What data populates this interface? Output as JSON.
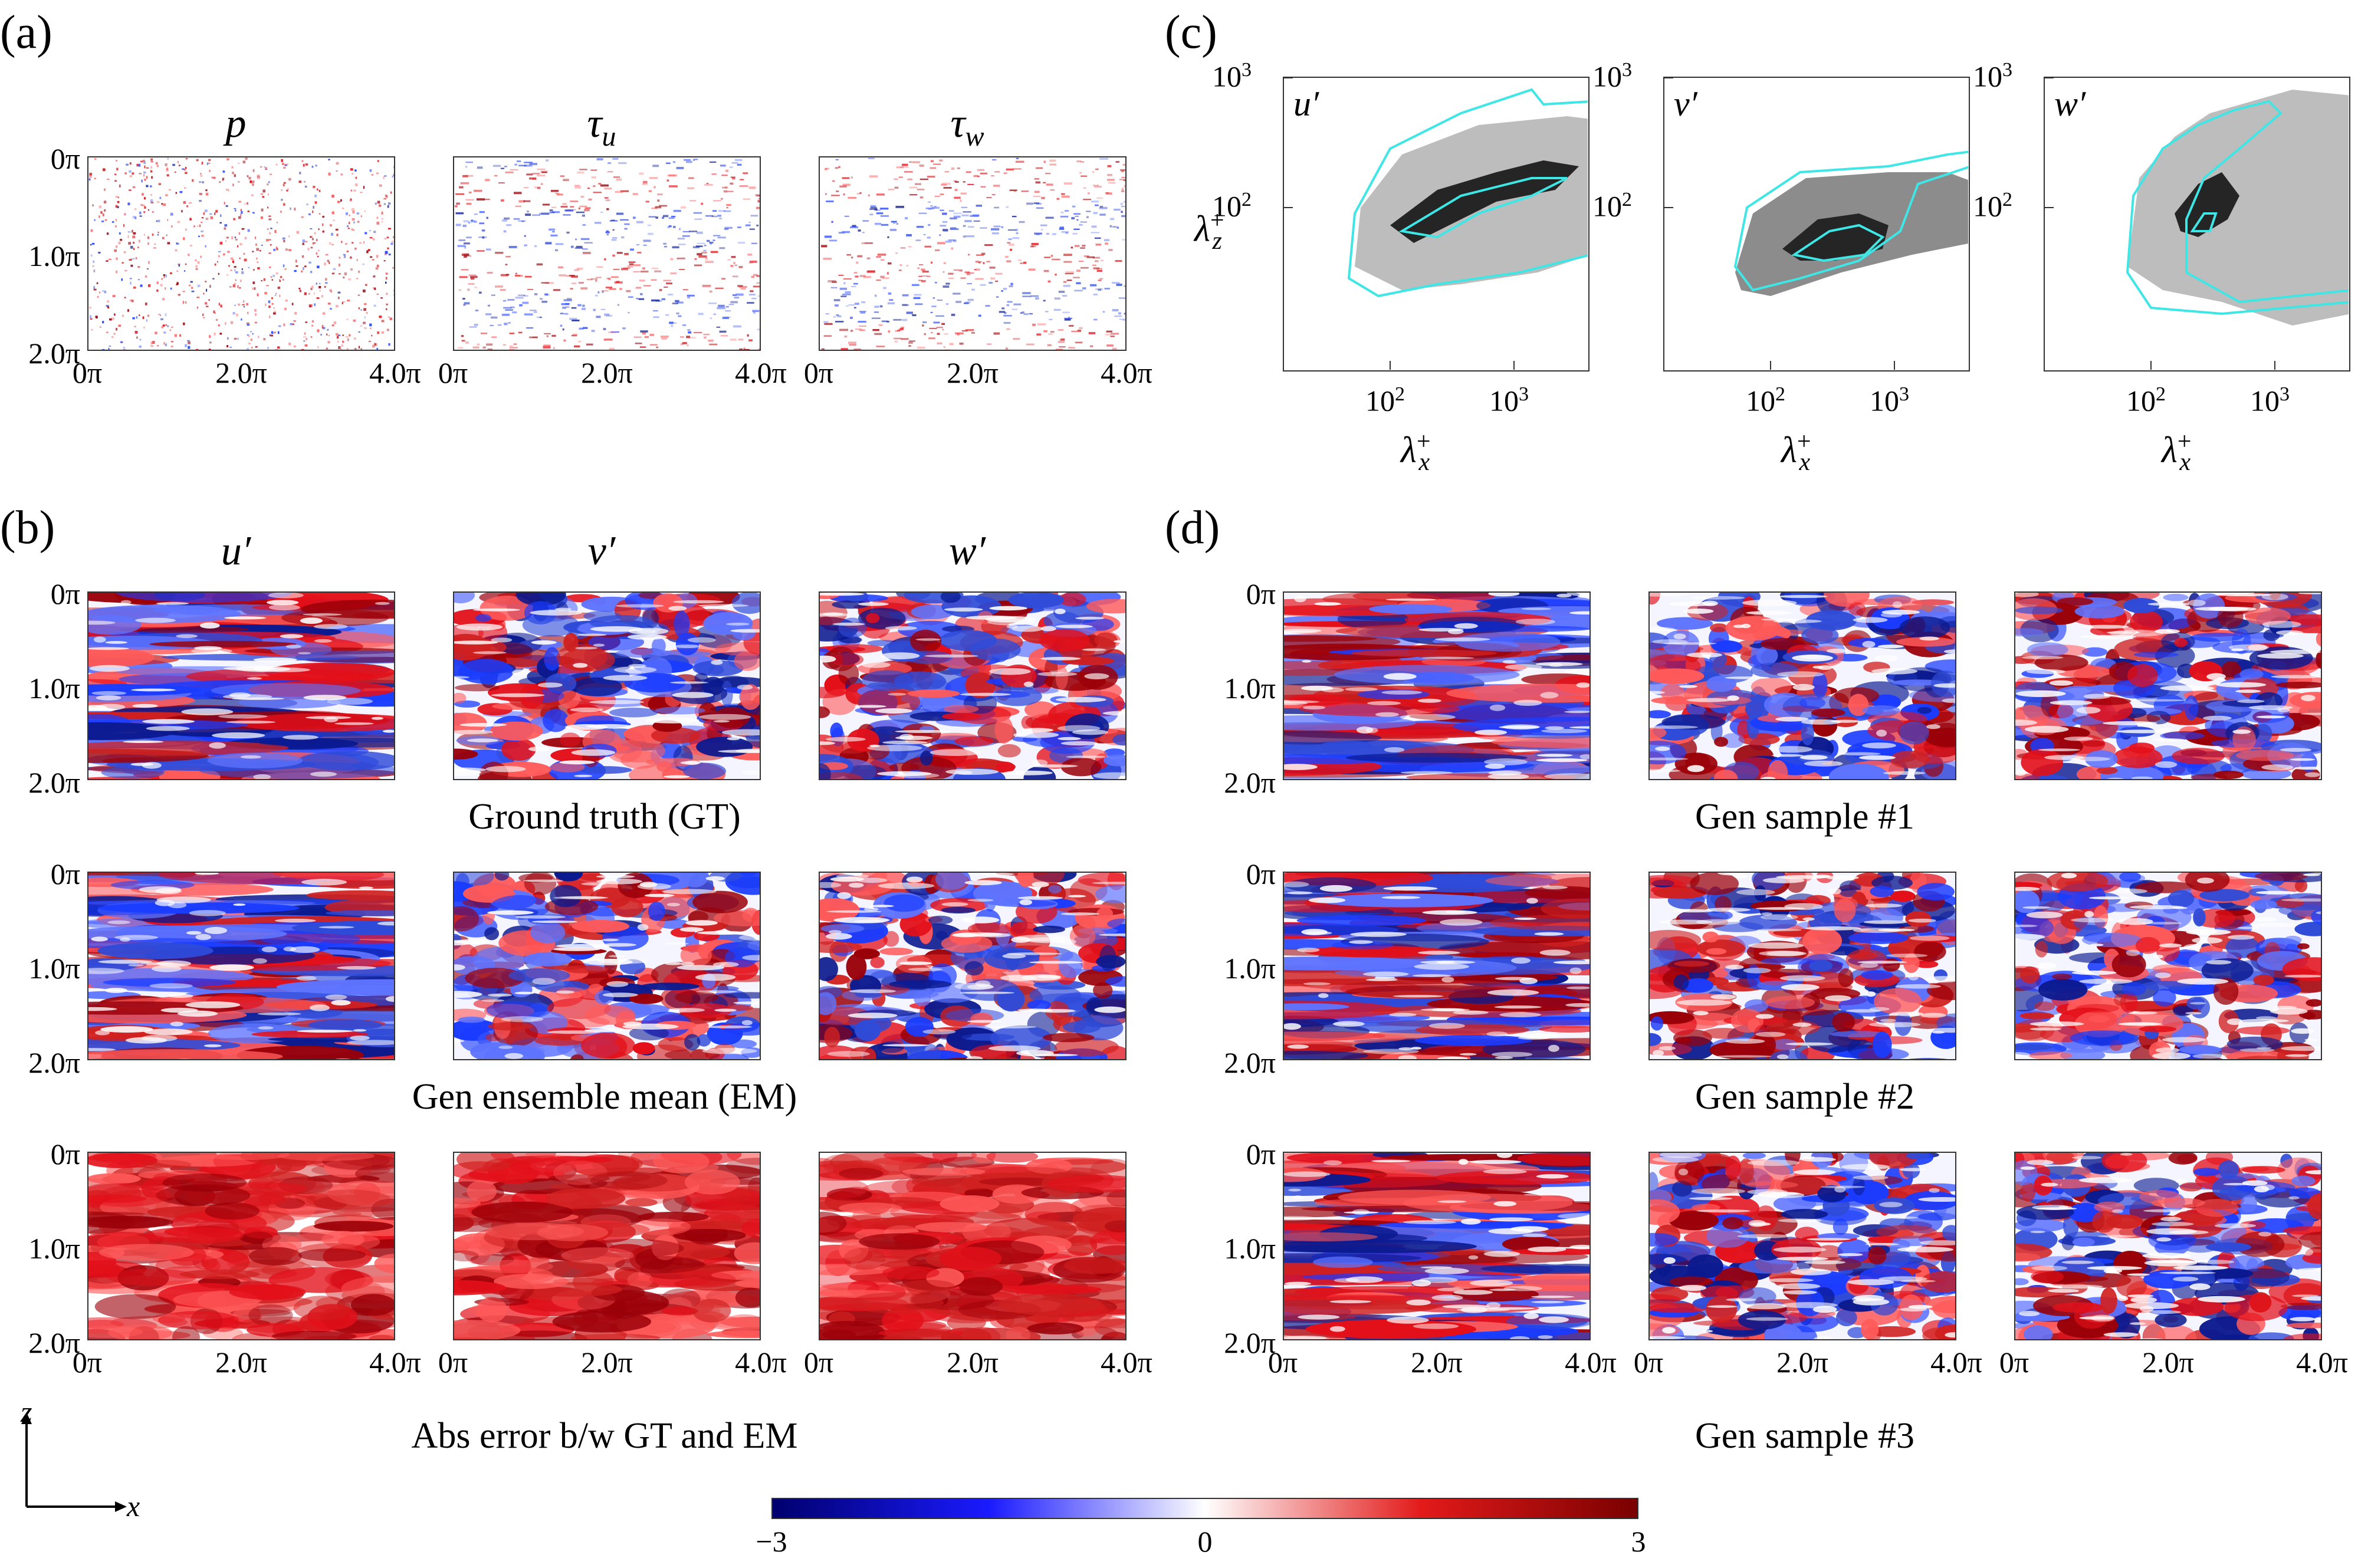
{
  "panel_labels": {
    "a": "(a)",
    "b": "(b)",
    "c": "(c)",
    "d": "(d)"
  },
  "a": {
    "titles": [
      "p",
      "τ",
      "τ"
    ],
    "subscripts": [
      "",
      "u",
      "w"
    ],
    "y_ticks": [
      "0π",
      "1.0π",
      "2.0π"
    ],
    "x_ticks": [
      "0π",
      "2.0π",
      "4.0π"
    ]
  },
  "b": {
    "col_titles": [
      "u′",
      "v′",
      "w′"
    ],
    "row_captions": [
      "Ground truth (GT)",
      "Gen ensemble mean (EM)",
      "Abs error b/w GT and EM"
    ],
    "y_ticks": [
      "0π",
      "1.0π",
      "2.0π"
    ],
    "x_ticks": [
      "0π",
      "2.0π",
      "4.0π"
    ]
  },
  "c": {
    "panel_titles": [
      "u′",
      "v′",
      "w′"
    ],
    "y_ticks": [
      "10",
      "10"
    ],
    "y_tick_exps": [
      "3",
      "2"
    ],
    "x_ticks": [
      "10",
      "10"
    ],
    "x_tick_exps": [
      "2",
      "3"
    ],
    "ylabel": "λ",
    "ylabel_sup": "+",
    "ylabel_sub": "z",
    "xlabel": "λ",
    "xlabel_sup": "+",
    "xlabel_sub": "x"
  },
  "d": {
    "row_captions": [
      "Gen sample #1",
      "Gen sample #2",
      "Gen sample #3"
    ],
    "y_ticks": [
      "0π",
      "1.0π",
      "2.0π"
    ],
    "x_ticks": [
      "0π",
      "2.0π",
      "4.0π"
    ]
  },
  "axes_indicator": {
    "z": "z",
    "x": "x"
  },
  "colorbar": {
    "min_label": "−3",
    "mid_label": "0",
    "max_label": "3",
    "min": -3,
    "max": 3,
    "colors": [
      "#00006e",
      "#1a1aff",
      "#ffffff",
      "#e31a1a",
      "#7a0000"
    ]
  },
  "colors": {
    "cyan": "#3ee6e6",
    "light_gray": "#bdbdbd",
    "mid_gray": "#8c8c8c",
    "dark": "#252525"
  }
}
